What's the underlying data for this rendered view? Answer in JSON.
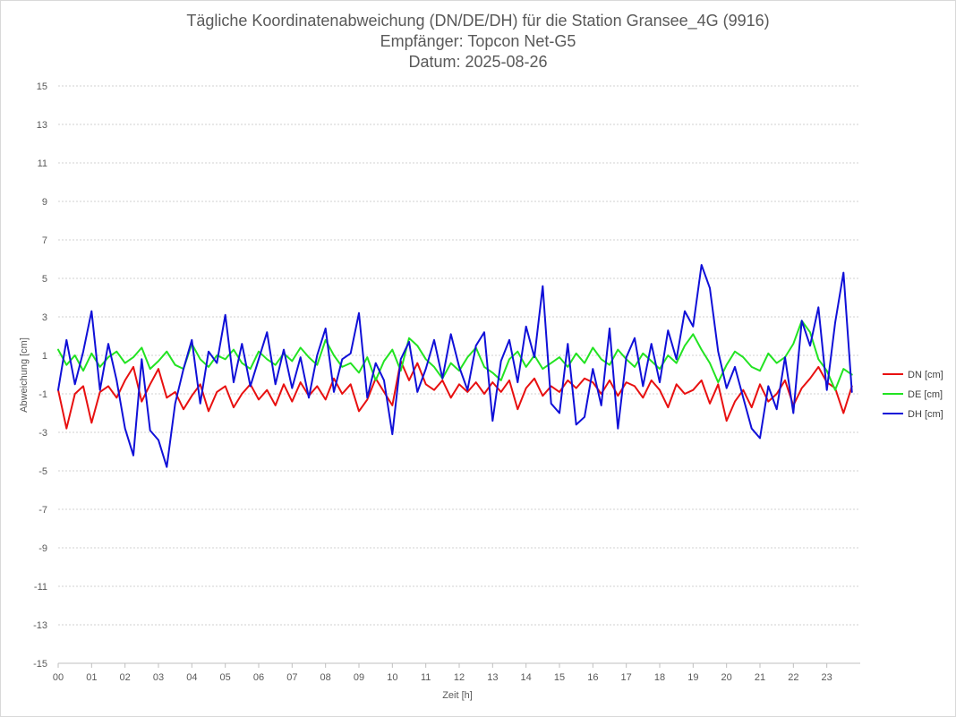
{
  "chart_data": {
    "type": "line",
    "title": [
      "Tägliche Koordinatenabweichung (DN/DE/DH) für die Station Gransee_4G (9916)",
      "Empfänger: Topcon Net-G5",
      "Datum: 2025-08-26"
    ],
    "xlabel": "Zeit [h]",
    "ylabel": "Abweichung [cm]",
    "xlim": [
      0,
      24
    ],
    "ylim": [
      -15,
      15
    ],
    "y_ticks": [
      15,
      13,
      11,
      9,
      7,
      5,
      3,
      1,
      -1,
      -3,
      -5,
      -7,
      -9,
      -11,
      -13,
      -15
    ],
    "x_ticks": [
      "00",
      "01",
      "02",
      "03",
      "04",
      "05",
      "06",
      "07",
      "08",
      "09",
      "10",
      "11",
      "12",
      "13",
      "14",
      "15",
      "16",
      "17",
      "18",
      "19",
      "20",
      "21",
      "22",
      "23"
    ],
    "grid": "horizontal dotted",
    "legend_position": "right",
    "series": [
      {
        "name": "DN [cm]",
        "color": "#e81010",
        "x": [
          0,
          0.25,
          0.5,
          0.75,
          1,
          1.25,
          1.5,
          1.75,
          2,
          2.25,
          2.5,
          2.75,
          3,
          3.25,
          3.5,
          3.75,
          4,
          4.25,
          4.5,
          4.75,
          5,
          5.25,
          5.5,
          5.75,
          6,
          6.25,
          6.5,
          6.75,
          7,
          7.25,
          7.5,
          7.75,
          8,
          8.25,
          8.5,
          8.75,
          9,
          9.25,
          9.5,
          9.75,
          10,
          10.25,
          10.5,
          10.75,
          11,
          11.25,
          11.5,
          11.75,
          12,
          12.25,
          12.5,
          12.75,
          13,
          13.25,
          13.5,
          13.75,
          14,
          14.25,
          14.5,
          14.75,
          15,
          15.25,
          15.5,
          15.75,
          16,
          16.25,
          16.5,
          16.75,
          17,
          17.25,
          17.5,
          17.75,
          18,
          18.25,
          18.5,
          18.75,
          19,
          19.25,
          19.5,
          19.75,
          20,
          20.25,
          20.5,
          20.75,
          21,
          21.25,
          21.5,
          21.75,
          22,
          22.25,
          22.5,
          22.75,
          23,
          23.25,
          23.5,
          23.75
        ],
        "values": [
          -0.8,
          -2.8,
          -1.0,
          -0.6,
          -2.5,
          -0.9,
          -0.6,
          -1.2,
          -0.3,
          0.4,
          -1.4,
          -0.5,
          0.3,
          -1.2,
          -0.9,
          -1.8,
          -1.1,
          -0.5,
          -1.9,
          -0.9,
          -0.6,
          -1.7,
          -1.0,
          -0.5,
          -1.3,
          -0.8,
          -1.6,
          -0.5,
          -1.4,
          -0.4,
          -1.1,
          -0.6,
          -1.3,
          -0.2,
          -1.0,
          -0.5,
          -1.9,
          -1.3,
          -0.2,
          -0.9,
          -1.6,
          0.7,
          -0.3,
          0.6,
          -0.5,
          -0.8,
          -0.3,
          -1.2,
          -0.5,
          -0.9,
          -0.4,
          -1.0,
          -0.4,
          -0.9,
          -0.3,
          -1.8,
          -0.7,
          -0.2,
          -1.1,
          -0.6,
          -0.9,
          -0.3,
          -0.7,
          -0.2,
          -0.4,
          -1.0,
          -0.3,
          -1.1,
          -0.4,
          -0.6,
          -1.2,
          -0.3,
          -0.8,
          -1.7,
          -0.5,
          -1.0,
          -0.8,
          -0.3,
          -1.5,
          -0.5,
          -2.4,
          -1.4,
          -0.8,
          -1.7,
          -0.5,
          -1.4,
          -1.0,
          -0.3,
          -1.6,
          -0.7,
          -0.2,
          0.4,
          -0.4,
          -0.7,
          -2.0,
          -0.6
        ]
      },
      {
        "name": "DE [cm]",
        "color": "#22e322",
        "x": [
          0,
          0.25,
          0.5,
          0.75,
          1,
          1.25,
          1.5,
          1.75,
          2,
          2.25,
          2.5,
          2.75,
          3,
          3.25,
          3.5,
          3.75,
          4,
          4.25,
          4.5,
          4.75,
          5,
          5.25,
          5.5,
          5.75,
          6,
          6.25,
          6.5,
          6.75,
          7,
          7.25,
          7.5,
          7.75,
          8,
          8.25,
          8.5,
          8.75,
          9,
          9.25,
          9.5,
          9.75,
          10,
          10.25,
          10.5,
          10.75,
          11,
          11.25,
          11.5,
          11.75,
          12,
          12.25,
          12.5,
          12.75,
          13,
          13.25,
          13.5,
          13.75,
          14,
          14.25,
          14.5,
          14.75,
          15,
          15.25,
          15.5,
          15.75,
          16,
          16.25,
          16.5,
          16.75,
          17,
          17.25,
          17.5,
          17.75,
          18,
          18.25,
          18.5,
          18.75,
          19,
          19.25,
          19.5,
          19.75,
          20,
          20.25,
          20.5,
          20.75,
          21,
          21.25,
          21.5,
          21.75,
          22,
          22.25,
          22.5,
          22.75,
          23,
          23.25,
          23.5,
          23.75
        ],
        "values": [
          1.3,
          0.5,
          1.0,
          0.2,
          1.1,
          0.4,
          0.9,
          1.2,
          0.6,
          0.9,
          1.4,
          0.3,
          0.7,
          1.2,
          0.5,
          0.3,
          1.6,
          0.8,
          0.4,
          1.0,
          0.8,
          1.3,
          0.6,
          0.3,
          1.2,
          0.8,
          0.5,
          1.1,
          0.7,
          1.4,
          0.9,
          0.5,
          1.8,
          1.0,
          0.4,
          0.6,
          0.1,
          0.9,
          -0.3,
          0.7,
          1.3,
          0.2,
          1.9,
          1.5,
          0.8,
          0.4,
          -0.2,
          0.6,
          0.2,
          0.9,
          1.4,
          0.4,
          0.1,
          -0.3,
          0.8,
          1.2,
          0.4,
          1.0,
          0.3,
          0.6,
          0.9,
          0.4,
          1.1,
          0.6,
          1.4,
          0.8,
          0.5,
          1.3,
          0.8,
          0.4,
          1.1,
          0.7,
          0.3,
          1.0,
          0.6,
          1.5,
          2.1,
          1.3,
          0.6,
          -0.4,
          0.5,
          1.2,
          0.9,
          0.4,
          0.2,
          1.1,
          0.6,
          0.9,
          1.6,
          2.8,
          2.2,
          0.8,
          0.2,
          -0.8,
          0.3,
          0.0
        ]
      },
      {
        "name": "DH [cm]",
        "color": "#1010d8",
        "x": [
          0,
          0.25,
          0.5,
          0.75,
          1,
          1.25,
          1.5,
          1.75,
          2,
          2.25,
          2.5,
          2.75,
          3,
          3.25,
          3.5,
          3.75,
          4,
          4.25,
          4.5,
          4.75,
          5,
          5.25,
          5.5,
          5.75,
          6,
          6.25,
          6.5,
          6.75,
          7,
          7.25,
          7.5,
          7.75,
          8,
          8.25,
          8.5,
          8.75,
          9,
          9.25,
          9.5,
          9.75,
          10,
          10.25,
          10.5,
          10.75,
          11,
          11.25,
          11.5,
          11.75,
          12,
          12.25,
          12.5,
          12.75,
          13,
          13.25,
          13.5,
          13.75,
          14,
          14.25,
          14.5,
          14.75,
          15,
          15.25,
          15.5,
          15.75,
          16,
          16.25,
          16.5,
          16.75,
          17,
          17.25,
          17.5,
          17.75,
          18,
          18.25,
          18.5,
          18.75,
          19,
          19.25,
          19.5,
          19.75,
          20,
          20.25,
          20.5,
          20.75,
          21,
          21.25,
          21.5,
          21.75,
          22,
          22.25,
          22.5,
          22.75,
          23,
          23.25,
          23.5,
          23.75
        ],
        "values": [
          -0.8,
          1.8,
          -0.5,
          1.2,
          3.3,
          -0.8,
          1.6,
          -0.3,
          -2.8,
          -4.2,
          0.8,
          -2.9,
          -3.4,
          -4.8,
          -1.5,
          0.3,
          1.8,
          -1.5,
          1.2,
          0.6,
          3.1,
          -0.4,
          1.6,
          -0.6,
          0.8,
          2.2,
          -0.5,
          1.3,
          -0.7,
          0.9,
          -1.2,
          1.0,
          2.4,
          -0.9,
          0.8,
          1.1,
          3.2,
          -1.2,
          0.6,
          -0.3,
          -3.1,
          0.8,
          1.7,
          -0.9,
          0.3,
          1.8,
          -0.2,
          2.1,
          0.4,
          -0.8,
          1.5,
          2.2,
          -2.4,
          0.7,
          1.8,
          -0.4,
          2.5,
          0.9,
          4.6,
          -1.5,
          -2.0,
          1.6,
          -2.6,
          -2.2,
          0.3,
          -1.6,
          2.4,
          -2.8,
          0.9,
          1.9,
          -0.6,
          1.6,
          -0.4,
          2.3,
          0.8,
          3.3,
          2.5,
          5.7,
          4.5,
          1.2,
          -0.7,
          0.4,
          -1.2,
          -2.8,
          -3.3,
          -0.6,
          -1.8,
          0.9,
          -2.0,
          2.8,
          1.5,
          3.5,
          -0.8,
          2.7,
          5.3,
          -0.9
        ]
      }
    ]
  }
}
